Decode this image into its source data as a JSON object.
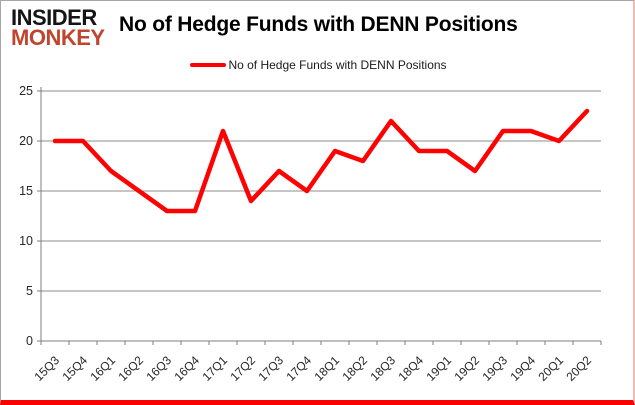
{
  "header": {
    "logo_line1": "INSIDER",
    "logo_line2": "MONKEY",
    "title": "No of Hedge Funds with DENN Positions"
  },
  "legend": {
    "label": "No of Hedge Funds with DENN Positions",
    "swatch_color": "#fe0101"
  },
  "chart_data": {
    "type": "line",
    "title": "No of Hedge Funds with DENN Positions",
    "categories": [
      "15Q3",
      "15Q4",
      "16Q1",
      "16Q2",
      "16Q3",
      "16Q4",
      "17Q1",
      "17Q2",
      "17Q3",
      "17Q4",
      "18Q1",
      "18Q2",
      "18Q3",
      "18Q4",
      "19Q1",
      "19Q2",
      "19Q3",
      "19Q4",
      "20Q1",
      "20Q2"
    ],
    "series": [
      {
        "name": "No of Hedge Funds with DENN Positions",
        "color": "#fe0101",
        "values": [
          20,
          20,
          17,
          15,
          13,
          13,
          21,
          14,
          17,
          15,
          19,
          18,
          22,
          19,
          19,
          17,
          21,
          21,
          20,
          23
        ]
      }
    ],
    "ylim": [
      0,
      25
    ],
    "yticks": [
      0,
      5,
      10,
      15,
      20,
      25
    ],
    "grid": "horizontal",
    "legend_position": "top-center"
  },
  "colors": {
    "line": "#fe0101",
    "gridline": "#8c8c8c",
    "axis": "#7f7f7f",
    "tick_text": "#262626",
    "logo_black": "#151515",
    "logo_red": "#c0452e",
    "frame_bottom": "#fb0202"
  }
}
